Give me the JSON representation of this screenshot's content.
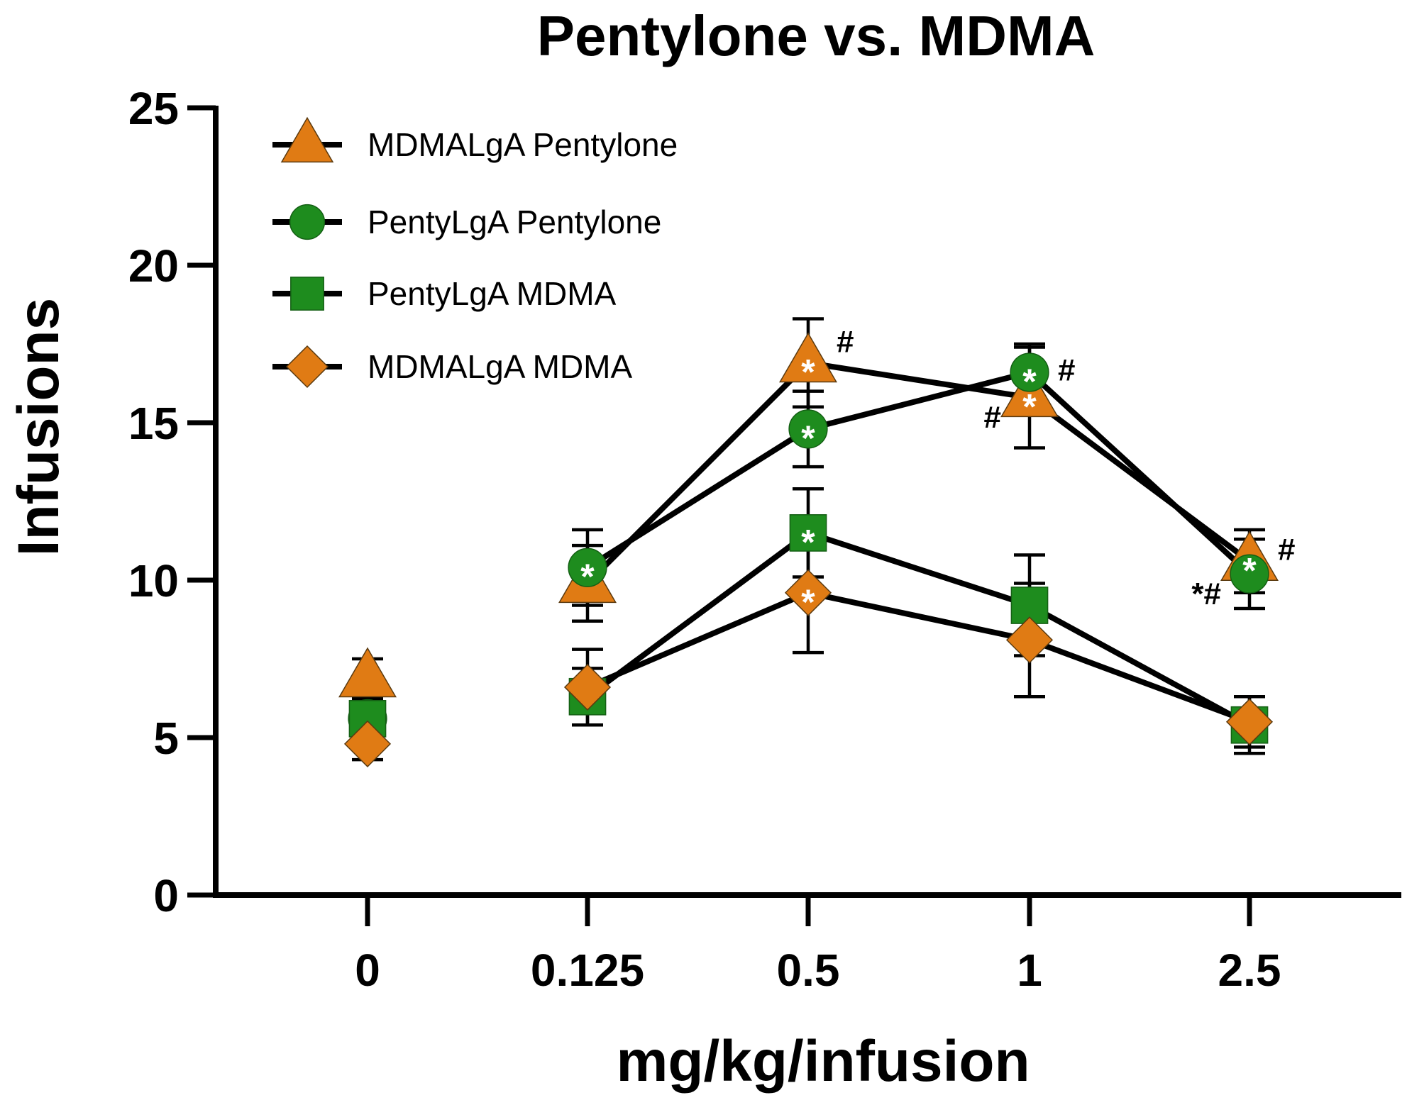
{
  "chart_data": {
    "type": "line",
    "title": "Pentylone vs. MDMA",
    "xlabel": "mg/kg/infusion",
    "ylabel": "Infusions",
    "categories": [
      "0",
      "0.125",
      "0.5",
      "1",
      "2.5"
    ],
    "yticks": [
      "0",
      "5",
      "10",
      "15",
      "20",
      "25"
    ],
    "ylim": [
      0,
      25
    ],
    "legend_position": "top-left",
    "series": [
      {
        "name": "MDMALgA Pentylone",
        "marker": "triangle",
        "color": "#E07B14",
        "values": [
          6.9,
          9.9,
          16.9,
          15.8,
          10.6
        ],
        "errors": [
          0.6,
          1.2,
          1.4,
          1.6,
          1.0
        ],
        "connect_first": false
      },
      {
        "name": "PentyLgA Pentylone",
        "marker": "circle",
        "color": "#1E8C1E",
        "values": [
          5.6,
          10.4,
          14.8,
          16.6,
          10.2
        ],
        "errors": [
          0.6,
          1.2,
          1.2,
          0.9,
          1.1
        ],
        "connect_first": false
      },
      {
        "name": "PentyLgA MDMA",
        "marker": "square",
        "color": "#1E8C1E",
        "values": [
          5.6,
          6.3,
          11.5,
          9.2,
          5.4
        ],
        "errors": [
          0.6,
          0.9,
          1.4,
          1.6,
          0.9
        ],
        "connect_first": false
      },
      {
        "name": "MDMALgA MDMA",
        "marker": "diamond",
        "color": "#E07B14",
        "values": [
          4.8,
          6.6,
          9.6,
          8.1,
          5.5
        ],
        "errors": [
          0.5,
          1.2,
          1.9,
          1.8,
          0.8
        ],
        "connect_first": false
      }
    ],
    "star_annotations": [
      {
        "series": 0,
        "x": "0.5"
      },
      {
        "series": 1,
        "x": "0.125"
      },
      {
        "series": 1,
        "x": "0.5"
      },
      {
        "series": 1,
        "x": "1"
      },
      {
        "series": 0,
        "x": "1"
      },
      {
        "series": 0,
        "x": "2.5"
      },
      {
        "series": 2,
        "x": "0.5"
      },
      {
        "series": 3,
        "x": "0.5"
      }
    ],
    "text_annotations": [
      {
        "text": "#",
        "x": "0.5",
        "y": 17.6,
        "side": "right"
      },
      {
        "text": "#",
        "x": "1",
        "y": 16.7,
        "side": "right"
      },
      {
        "text": "#",
        "x": "1",
        "y": 15.2,
        "side": "left"
      },
      {
        "text": "#",
        "x": "2.5",
        "y": 11.0,
        "side": "right"
      },
      {
        "text": "*#",
        "x": "2.5",
        "y": 9.6,
        "side": "left"
      }
    ]
  }
}
